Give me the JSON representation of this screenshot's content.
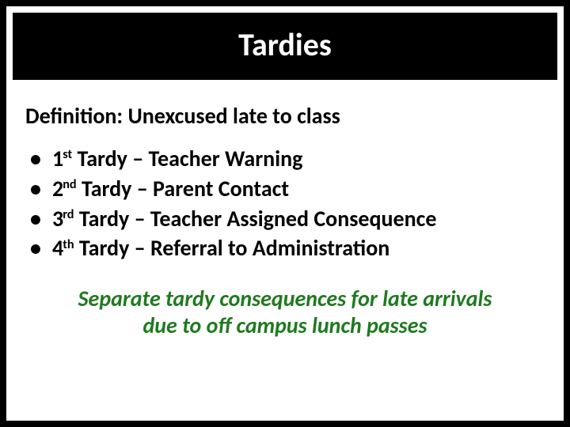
{
  "colors": {
    "page_bg": "#000000",
    "slide_bg": "#ffffff",
    "title_bg": "#000000",
    "title_text": "#ffffff",
    "body_text": "#000000",
    "footnote_text": "#1f7a1f"
  },
  "typography": {
    "title_fontsize_pt": 30,
    "body_fontsize_pt": 21,
    "font_family": "Calibri"
  },
  "title": "Tardies",
  "definition": "Definition:  Unexcused late to class",
  "bullets": [
    {
      "ordinal_num": "1",
      "ordinal_suffix": "st",
      "rest": " Tardy – Teacher Warning"
    },
    {
      "ordinal_num": "2",
      "ordinal_suffix": "nd",
      "rest": " Tardy – Parent Contact"
    },
    {
      "ordinal_num": "3",
      "ordinal_suffix": "rd",
      "rest": " Tardy – Teacher Assigned Consequence"
    },
    {
      "ordinal_num": "4",
      "ordinal_suffix": "th",
      "rest": " Tardy – Referral to Administration"
    }
  ],
  "footnote_line1": "Separate tardy consequences for late arrivals",
  "footnote_line2": "due to off campus lunch passes"
}
